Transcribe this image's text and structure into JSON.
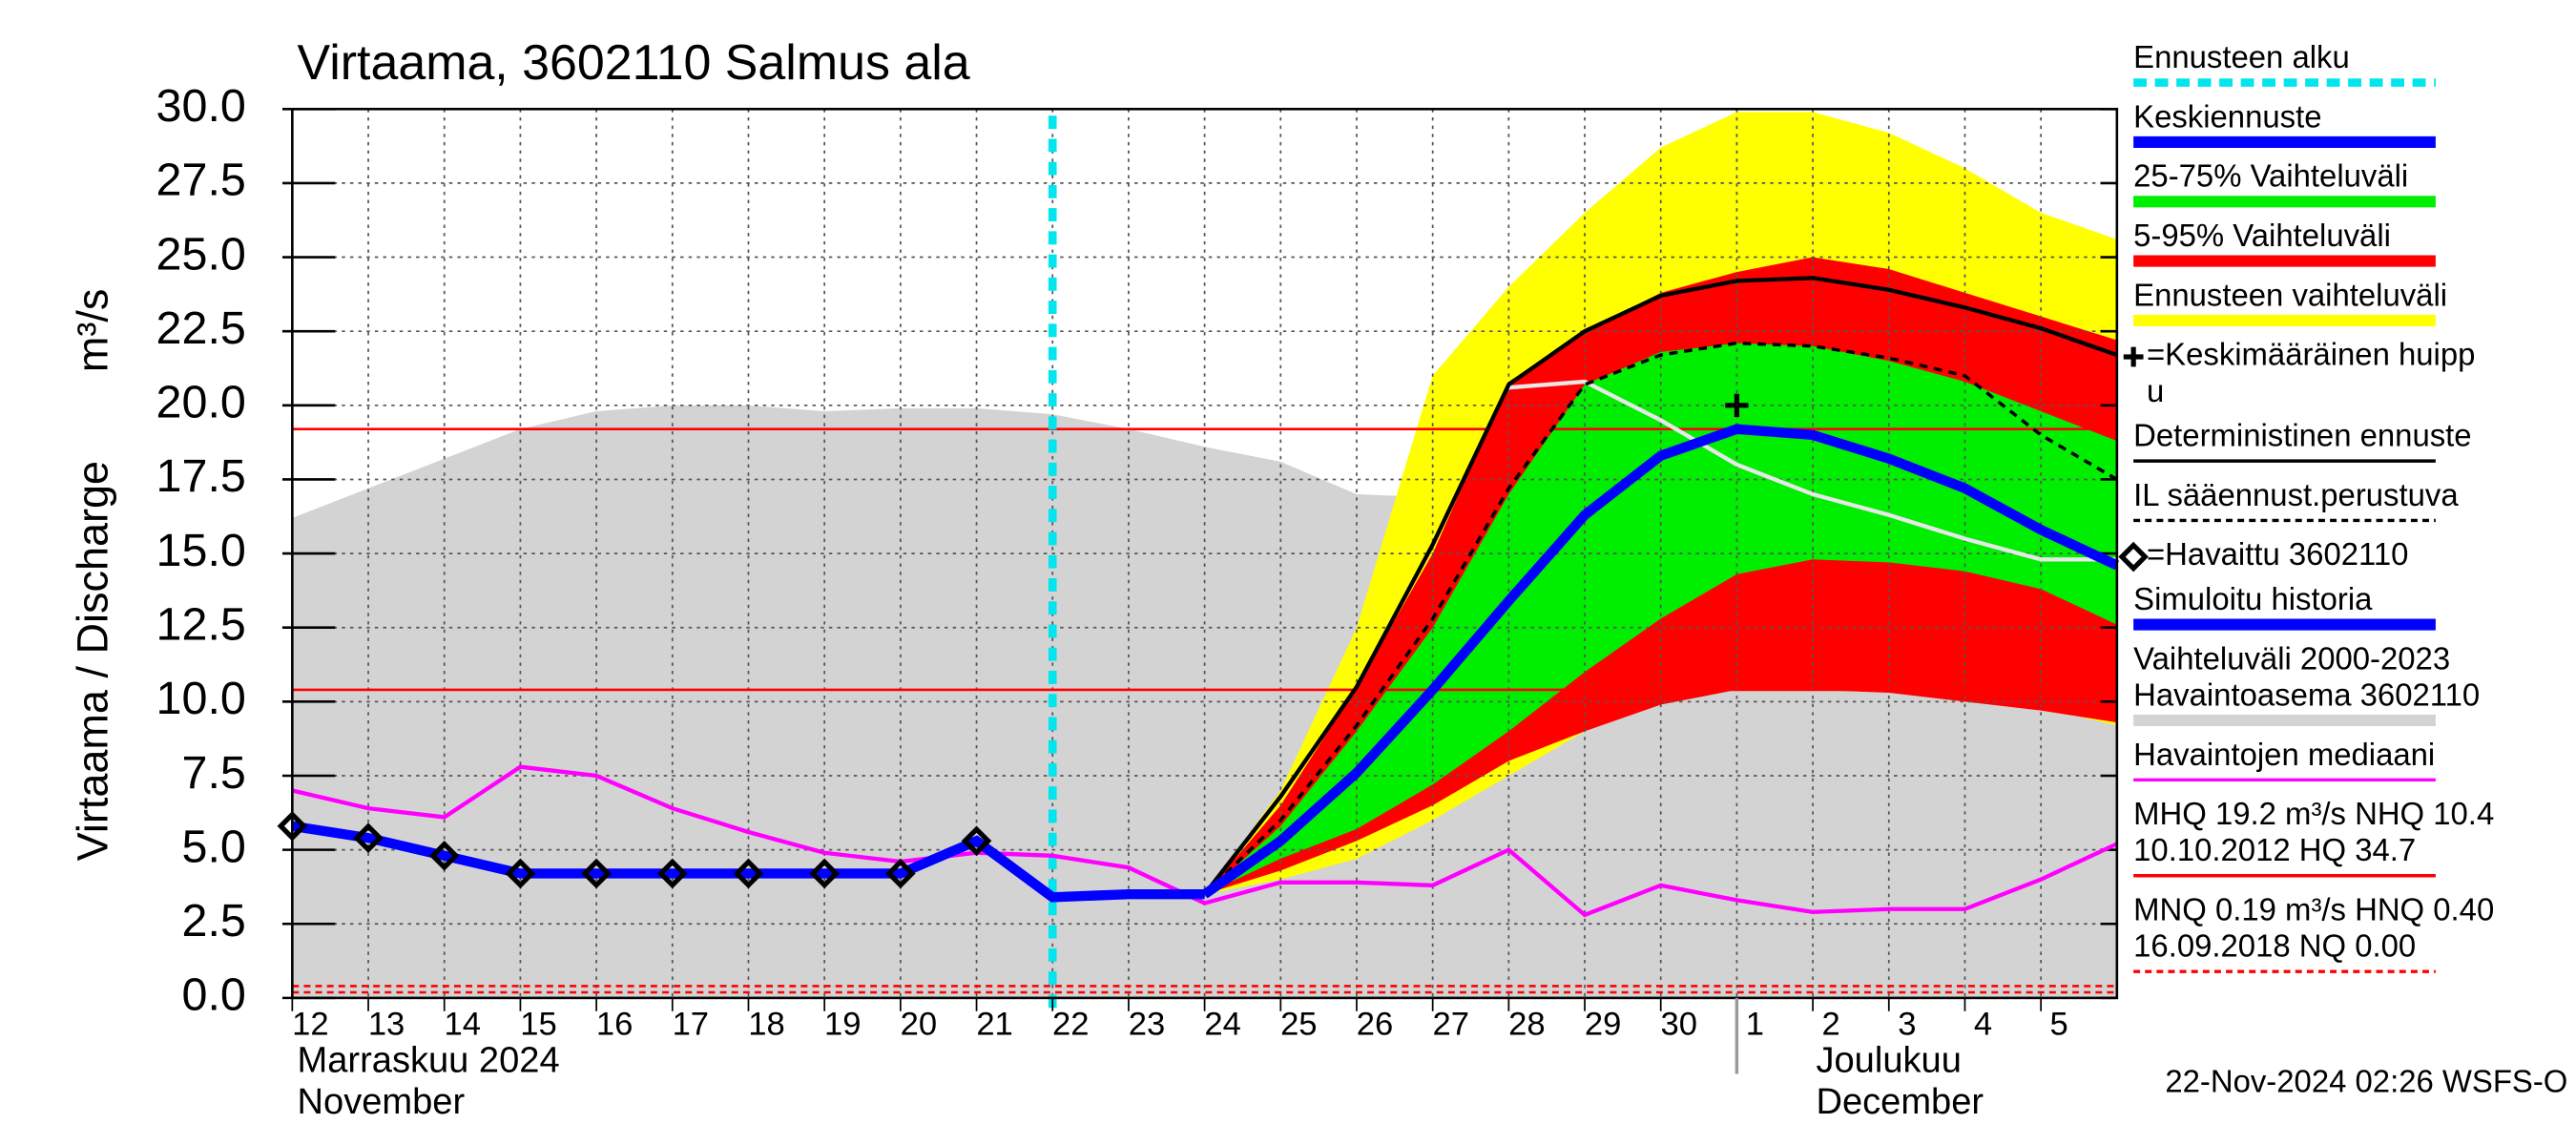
{
  "chart_data": {
    "type": "line",
    "title": "Virtaama, 3602110 Salmus ala",
    "ylabel": "Virtaama / Discharge",
    "ylabel_unit": "m³/s",
    "categories": [
      "12",
      "13",
      "14",
      "15",
      "16",
      "17",
      "18",
      "19",
      "20",
      "21",
      "22",
      "23",
      "24",
      "25",
      "26",
      "27",
      "28",
      "29",
      "30",
      "1",
      "2",
      "3",
      "4",
      "5",
      null
    ],
    "month_labels": [
      {
        "at": "12",
        "lines": [
          "Marraskuu 2024",
          "November"
        ]
      },
      {
        "at": "1",
        "lines": [
          "Joulukuu",
          "December"
        ]
      }
    ],
    "ylim": [
      0,
      30
    ],
    "yticks": [
      {
        "value": 0,
        "label": "0.0"
      },
      2.5,
      {
        "value": 5,
        "label": "5.0"
      },
      7.5,
      {
        "value": 10,
        "label": "10.0"
      },
      12.5,
      {
        "value": 15,
        "label": "15.0"
      },
      17.5,
      {
        "value": 20,
        "label": "20.0"
      },
      22.5,
      {
        "value": 25,
        "label": "25.0"
      },
      27.5,
      {
        "value": 30,
        "label": "30.0"
      }
    ],
    "grid": true,
    "forecast_start": "22",
    "forecast_color": "#00e5ee",
    "bands": [
      {
        "color": "#d3d3d3",
        "upper": [
          16.2,
          17.2,
          18.2,
          19.2,
          19.8,
          20.0,
          20.0,
          19.8,
          19.9,
          19.9,
          19.7,
          19.2,
          18.6,
          18.1,
          17.0,
          16.9,
          18.2,
          19.4,
          20.3,
          20.8,
          20.6,
          20.0,
          19.5,
          19.2,
          19.0
        ],
        "lower": [
          0,
          0,
          0,
          0,
          0,
          0,
          0,
          0,
          0,
          0,
          0,
          0,
          0,
          0,
          0,
          0,
          0,
          0,
          0,
          0,
          0,
          0,
          0,
          0,
          0
        ]
      },
      {
        "color": "#ffff00",
        "upper": [
          null,
          null,
          null,
          null,
          null,
          null,
          null,
          null,
          null,
          null,
          null,
          null,
          3.5,
          7.0,
          12.5,
          21.0,
          24.0,
          26.5,
          28.7,
          29.9,
          29.9,
          29.2,
          28.0,
          26.5,
          25.6
        ],
        "lower": [
          null,
          null,
          null,
          null,
          null,
          null,
          null,
          null,
          null,
          null,
          null,
          null,
          3.5,
          4.0,
          4.7,
          6.0,
          7.5,
          9.0,
          10.0,
          10.8,
          10.8,
          10.6,
          10.2,
          9.8,
          9.2
        ]
      },
      {
        "color": "#ff0000",
        "upper": [
          null,
          null,
          null,
          null,
          null,
          null,
          null,
          null,
          null,
          null,
          null,
          null,
          3.5,
          6.5,
          10.5,
          15.0,
          20.8,
          22.5,
          23.8,
          24.5,
          25.0,
          24.6,
          23.8,
          23.0,
          22.2
        ],
        "lower": [
          null,
          null,
          null,
          null,
          null,
          null,
          null,
          null,
          null,
          null,
          null,
          null,
          3.5,
          4.3,
          5.3,
          6.5,
          8.0,
          9.0,
          9.9,
          10.4,
          10.4,
          10.3,
          10.0,
          9.7,
          9.3
        ]
      },
      {
        "color": "#00ee00",
        "upper": [
          null,
          null,
          null,
          null,
          null,
          null,
          null,
          null,
          null,
          null,
          null,
          null,
          3.5,
          5.8,
          9.0,
          12.5,
          17.0,
          20.7,
          21.8,
          22.1,
          22.0,
          21.5,
          20.8,
          19.8,
          18.8
        ],
        "lower": [
          null,
          null,
          null,
          null,
          null,
          null,
          null,
          null,
          null,
          null,
          null,
          null,
          3.5,
          4.7,
          5.7,
          7.2,
          9.0,
          11.0,
          12.8,
          14.3,
          14.8,
          14.7,
          14.4,
          13.8,
          12.6
        ]
      }
    ],
    "ref_lines": [
      {
        "value": 19.2,
        "color": "#ff0000",
        "style": "solid"
      },
      {
        "value": 10.4,
        "color": "#ff0000",
        "style": "solid"
      },
      {
        "value": 0.4,
        "color": "#ff0000",
        "style": "dashed"
      },
      {
        "value": 0.19,
        "color": "#ff0000",
        "style": "dashed"
      }
    ],
    "series": [
      {
        "color": "#e8e8e8",
        "style": "line",
        "values": [
          null,
          null,
          null,
          null,
          null,
          null,
          null,
          null,
          null,
          null,
          null,
          null,
          null,
          null,
          null,
          null,
          20.6,
          20.8,
          19.5,
          18.0,
          17.0,
          16.3,
          15.5,
          14.8,
          14.8
        ]
      },
      {
        "color": "#ff00ff",
        "style": "line",
        "values": [
          7.0,
          6.4,
          6.1,
          7.8,
          7.5,
          6.4,
          5.6,
          4.9,
          4.6,
          4.9,
          4.8,
          4.4,
          3.2,
          3.9,
          3.9,
          3.8,
          5.0,
          2.8,
          3.8,
          3.3,
          2.9,
          3.0,
          3.0,
          4.0,
          5.2
        ]
      },
      {
        "color": "#000000",
        "style": "dashed",
        "values": [
          null,
          null,
          null,
          null,
          null,
          null,
          null,
          null,
          null,
          null,
          null,
          null,
          3.5,
          6.0,
          9.2,
          12.8,
          17.2,
          20.7,
          21.7,
          22.1,
          22.0,
          21.6,
          21.0,
          19.0,
          17.5
        ]
      },
      {
        "color": "#000000",
        "style": "line",
        "values": [
          null,
          null,
          null,
          null,
          null,
          null,
          null,
          null,
          null,
          null,
          null,
          null,
          3.5,
          6.8,
          10.5,
          15.3,
          20.7,
          22.5,
          23.7,
          24.2,
          24.3,
          23.9,
          23.3,
          22.6,
          21.7
        ]
      },
      {
        "color": "#0000ff",
        "style": "thick",
        "values": [
          null,
          null,
          null,
          null,
          null,
          null,
          null,
          null,
          null,
          null,
          null,
          null,
          3.5,
          5.3,
          7.6,
          10.4,
          13.4,
          16.3,
          18.3,
          19.2,
          19.0,
          18.2,
          17.2,
          15.8,
          14.6
        ]
      },
      {
        "color": "#0000ff",
        "style": "thick",
        "values": [
          5.8,
          5.4,
          4.8,
          4.2,
          4.2,
          4.2,
          4.2,
          4.2,
          4.2,
          5.3,
          3.4,
          3.5,
          3.5,
          null,
          null,
          null,
          null,
          null,
          null,
          null,
          null,
          null,
          null,
          null,
          null
        ]
      },
      {
        "color": "#000000",
        "style": "diamond",
        "values": [
          5.8,
          5.4,
          4.8,
          4.2,
          4.2,
          4.2,
          4.2,
          4.2,
          4.2,
          5.3,
          null,
          null,
          null,
          null,
          null,
          null,
          null,
          null,
          null,
          null,
          null,
          null,
          null,
          null,
          null
        ]
      }
    ],
    "peak": {
      "at": "1",
      "value": 20.0,
      "color": "#000000"
    },
    "legend": [
      {
        "lines": [
          "Ennusteen alku"
        ],
        "style": "dashed-thick",
        "color": "#00e5ee"
      },
      {
        "lines": [
          "Keskiennuste"
        ],
        "style": "thick",
        "color": "#0000ff"
      },
      {
        "lines": [
          "25-75% Vaihteluväli"
        ],
        "style": "thick",
        "color": "#00ee00"
      },
      {
        "lines": [
          "5-95% Vaihteluväli"
        ],
        "style": "thick",
        "color": "#ff0000"
      },
      {
        "lines": [
          "Ennusteen vaihteluväli"
        ],
        "style": "thick",
        "color": "#ffff00"
      },
      {
        "lines": [
          "=Keskimääräinen huipp",
          "u"
        ],
        "style": "plus",
        "color": "#000000"
      },
      {
        "lines": [
          "Deterministinen ennuste"
        ],
        "style": "line",
        "color": "#000000"
      },
      {
        "lines": [
          "IL sääennust.perustuva"
        ],
        "style": "dashed",
        "color": "#000000"
      },
      {
        "lines": [
          "=Havaittu 3602110"
        ],
        "style": "diamond",
        "color": "#000000"
      },
      {
        "lines": [
          "Simuloitu historia"
        ],
        "style": "thick",
        "color": "#0000ff"
      },
      {
        "lines": [
          "Vaihteluväli 2000-2023",
          " Havaintoasema 3602110"
        ],
        "style": "thick",
        "color": "#d3d3d3"
      },
      {
        "lines": [
          "Havaintojen mediaani"
        ],
        "style": "line",
        "color": "#ff00ff"
      },
      {
        "lines": [
          "MHQ 19.2 m³/s NHQ 10.4",
          "10.10.2012 HQ 34.7"
        ],
        "style": "line",
        "color": "#ff0000"
      },
      {
        "lines": [
          "MNQ 0.19 m³/s HNQ 0.40",
          "16.09.2018 NQ 0.00"
        ],
        "style": "dashed",
        "color": "#ff0000"
      }
    ],
    "footer": "22-Nov-2024 02:26 WSFS-O"
  }
}
